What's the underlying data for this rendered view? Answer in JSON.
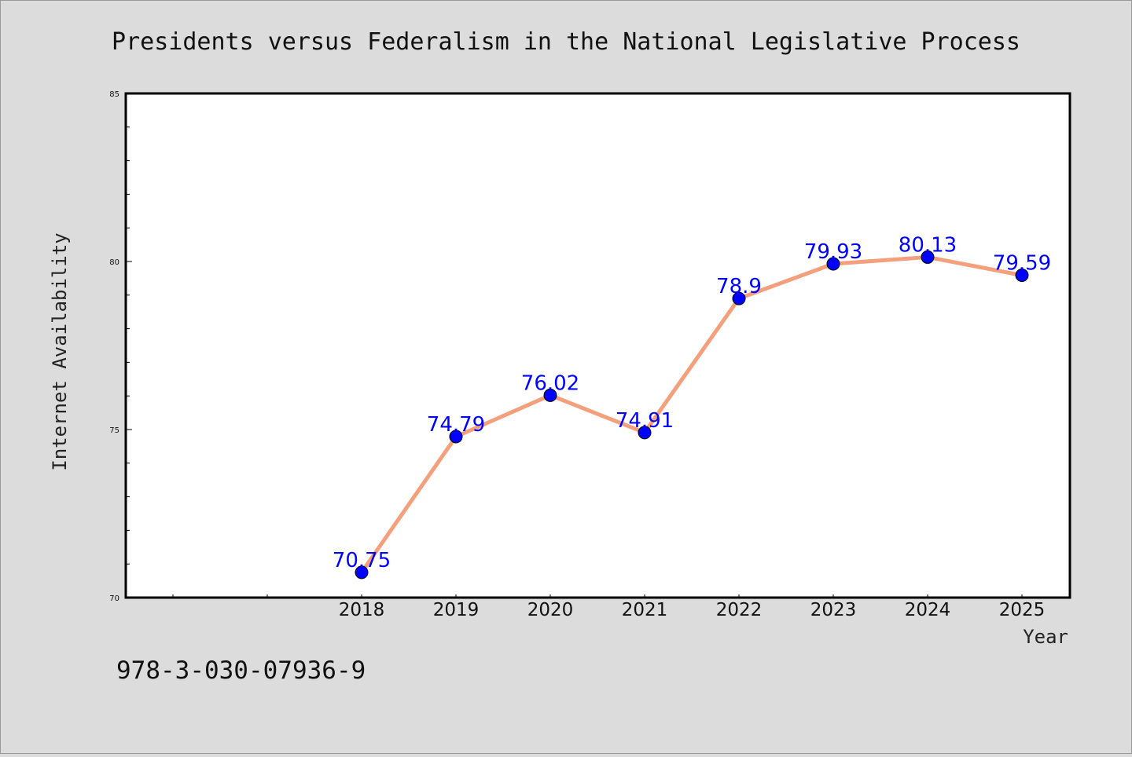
{
  "chart_data": {
    "type": "line",
    "title": "Presidents versus Federalism in the National Legislative Process",
    "xlabel": "Year",
    "ylabel": "Internet Availability",
    "x": [
      "2018",
      "2019",
      "2020",
      "2021",
      "2022",
      "2023",
      "2024",
      "2025"
    ],
    "series": [
      {
        "values": [
          70.75,
          74.79,
          76.02,
          74.91,
          78.9,
          79.93,
          80.13,
          79.59
        ],
        "data_labels": [
          "70.75",
          "74.79",
          "76.02",
          "74.91",
          "78.9",
          "79.93",
          "80.13",
          "79.59"
        ],
        "line_color": "#f4a07c",
        "marker_color": "#0000ff"
      }
    ],
    "ylim": [
      70,
      85
    ],
    "yticks": [
      "70",
      "75",
      "80",
      "85"
    ],
    "grid": false,
    "legend": "none",
    "colors": {
      "background": "#dcdcdc",
      "plot_area": "#ffffff",
      "label": "#0000ff"
    }
  },
  "footer": {
    "isbn": "978-3-030-07936-9"
  }
}
